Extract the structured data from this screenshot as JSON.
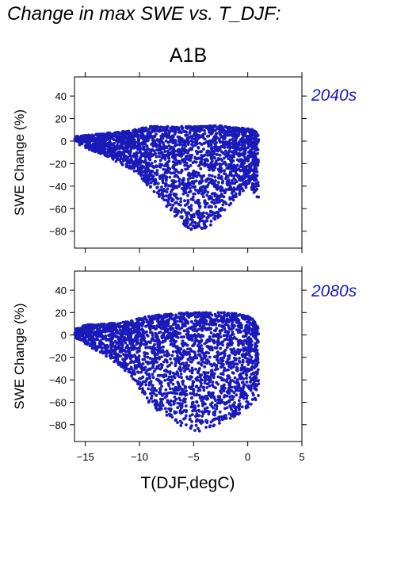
{
  "figure_title": "Change in max SWE vs. T_DJF:",
  "group_title": "A1B",
  "colors": {
    "points": "#1a1ab8",
    "strip_text": "#1a1ab8"
  },
  "chart_data": [
    {
      "type": "scatter",
      "panel": "2040s",
      "ylabel": "SWE Change (%)",
      "xlabel": "T(DJF,degC)",
      "xlim": [
        -16,
        5
      ],
      "ylim": [
        -95,
        57
      ],
      "xticks": [
        -15,
        -10,
        -5,
        0,
        5
      ],
      "yticks": [
        40,
        20,
        0,
        -20,
        -40,
        -60,
        -80
      ],
      "grid": false,
      "envelope": {
        "x": [
          -16,
          -15,
          -13,
          -11,
          -10,
          -9,
          -8,
          -7,
          -6,
          -5,
          -4,
          -3,
          -2,
          -1,
          0,
          0.5,
          1
        ],
        "upper": [
          4,
          5,
          7,
          9,
          11,
          13,
          13,
          13,
          13,
          13,
          13,
          14,
          13,
          12,
          11,
          10,
          6
        ],
        "lower": [
          -2,
          -6,
          -14,
          -24,
          -30,
          -44,
          -52,
          -64,
          -74,
          -80,
          -78,
          -72,
          -60,
          -50,
          -40,
          -45,
          -55
        ]
      }
    },
    {
      "type": "scatter",
      "panel": "2080s",
      "ylabel": "SWE Change (%)",
      "xlabel": "T(DJF,degC)",
      "xlim": [
        -16,
        5
      ],
      "ylim": [
        -95,
        57
      ],
      "xticks": [
        -15,
        -10,
        -5,
        0,
        5
      ],
      "yticks": [
        40,
        20,
        0,
        -20,
        -40,
        -60,
        -80
      ],
      "grid": false,
      "envelope": {
        "x": [
          -16,
          -15,
          -13,
          -11,
          -10,
          -9,
          -8,
          -7,
          -6,
          -5,
          -4,
          -3,
          -2,
          -1,
          0,
          0.5,
          1
        ],
        "upper": [
          5,
          9,
          10,
          12,
          15,
          17,
          18,
          19,
          20,
          20,
          20,
          20,
          20,
          19,
          17,
          14,
          6
        ],
        "lower": [
          -2,
          -8,
          -20,
          -34,
          -48,
          -62,
          -70,
          -76,
          -82,
          -86,
          -86,
          -82,
          -78,
          -72,
          -66,
          -60,
          -55
        ]
      }
    }
  ]
}
